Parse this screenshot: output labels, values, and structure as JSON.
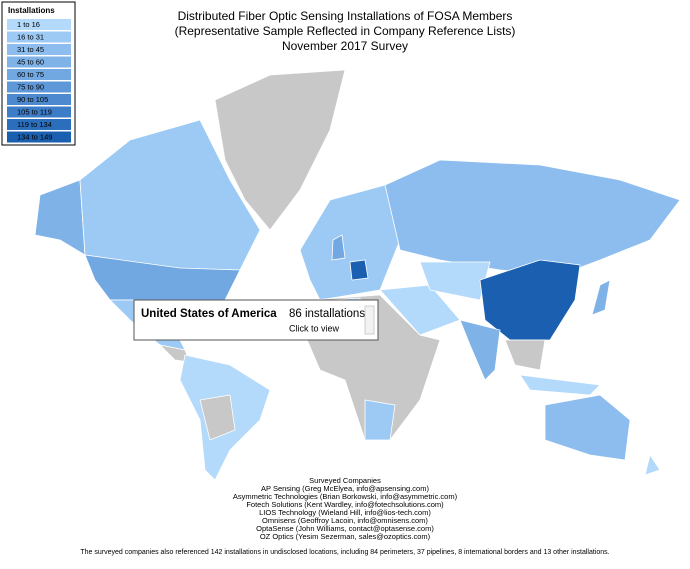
{
  "title": [
    "Distributed Fiber Optic Sensing Installations of FOSA Members",
    "(Representative Sample Reflected in Company Reference Lists)",
    "November 2017 Survey"
  ],
  "legend": {
    "title": "Installations",
    "items": [
      {
        "label": "1 to 16",
        "color": "#b3d9fb"
      },
      {
        "label": "16 to 31",
        "color": "#9ccaf5"
      },
      {
        "label": "31 to 45",
        "color": "#8cbdee"
      },
      {
        "label": "45 to 60",
        "color": "#7fb3e8"
      },
      {
        "label": "60 to 75",
        "color": "#72a8e2"
      },
      {
        "label": "75 to 90",
        "color": "#5f98d8"
      },
      {
        "label": "90 to 105",
        "color": "#4d89cf"
      },
      {
        "label": "105 to 119",
        "color": "#3d7cc6"
      },
      {
        "label": "119 to 134",
        "color": "#2a6ebc"
      },
      {
        "label": "134 to 149",
        "color": "#1a5fb0"
      }
    ]
  },
  "tooltip": {
    "country": "United States of America",
    "value_text": "86 installations",
    "action": "Click to view"
  },
  "companies": {
    "heading": "Surveyed Companies",
    "items": [
      "AP Sensing (Greg McElyea, info@apsensing.com)",
      "Asymmetric Technologies (Brian Borkowski, info@asymmetric.com)",
      "Fotech Solutions (Kent Wardley, info@fotechsolutions.com)",
      "LIOS Technology (Wieland Hill, info@lios-tech.com)",
      "Omnisens (Geoffroy Lacoin, info@omnisens.com)",
      "OptaSense (John Williams, contact@optasense.com)",
      "OZ Optics (Yesim Sezerman, sales@ozoptics.com)"
    ]
  },
  "footnote": "The surveyed companies also referenced 142 installations in undisclosed locations, including 84 perimeters, 37 pipelines, 8 international borders and 13 other installations."
}
